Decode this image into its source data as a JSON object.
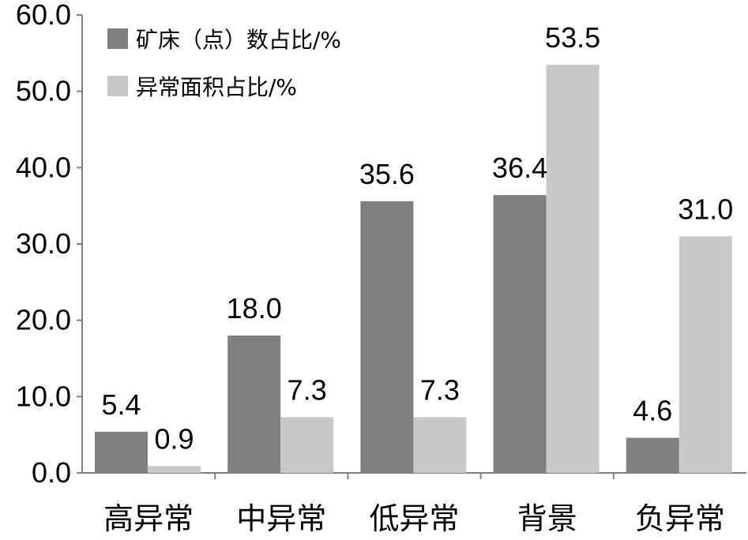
{
  "chart_data": {
    "type": "bar",
    "categories": [
      "高异常",
      "中异常",
      "低异常",
      "背景",
      "负异常"
    ],
    "series": [
      {
        "name": "矿床（点）数占比/%",
        "values": [
          5.4,
          18.0,
          35.6,
          36.4,
          4.6
        ],
        "color": "#808080"
      },
      {
        "name": "异常面积占比/%",
        "values": [
          0.9,
          7.3,
          7.3,
          53.5,
          31.0
        ],
        "color": "#c8c8c8"
      }
    ],
    "yticks": [
      "0.0",
      "10.0",
      "20.0",
      "30.0",
      "40.0",
      "50.0",
      "60.0"
    ],
    "ylim": [
      0,
      60
    ],
    "title": "",
    "xlabel": "",
    "ylabel": "",
    "grid": false,
    "legend_position": "top-left"
  }
}
